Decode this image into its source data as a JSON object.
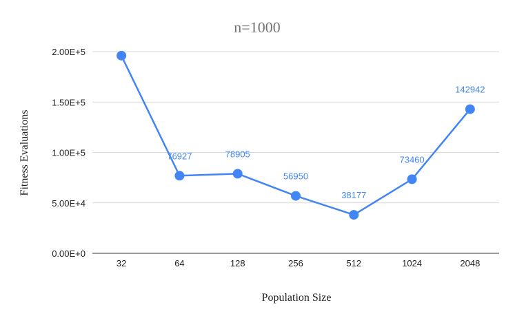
{
  "chart_data": {
    "type": "line",
    "title": "n=1000",
    "xlabel": "Population Size",
    "ylabel": "Fitness Evaluations",
    "categories": [
      "32",
      "64",
      "128",
      "256",
      "512",
      "1024",
      "2048"
    ],
    "series": [
      {
        "values": [
          196000,
          76927,
          78905,
          56950,
          38177,
          73460,
          142942
        ],
        "data_labels": [
          "",
          "76927",
          "78905",
          "56950",
          "38177",
          "73460",
          "142942"
        ]
      }
    ],
    "ylim": [
      0,
      200000
    ],
    "y_ticks": [
      0,
      50000,
      100000,
      150000,
      200000
    ],
    "y_tick_labels": [
      "0.00E+0",
      "5.00E+4",
      "1.00E+5",
      "1.50E+5",
      "2.00E+5"
    ],
    "grid": true,
    "legend": "none",
    "colors": {
      "series": "#4285f4",
      "grid": "#d9d9d9",
      "title": "#757575"
    }
  }
}
